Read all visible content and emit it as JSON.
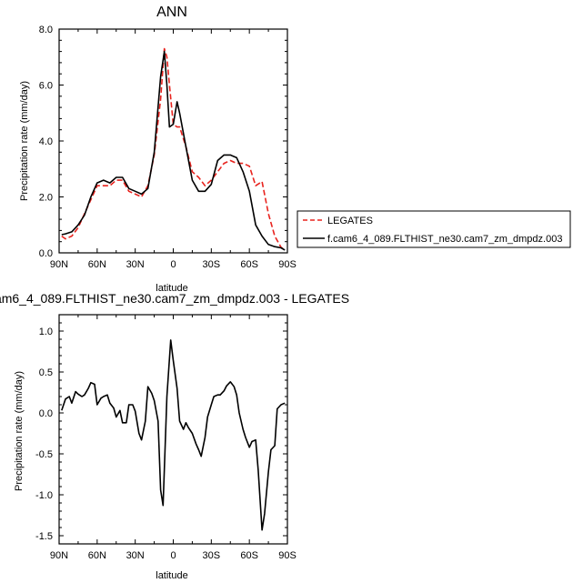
{
  "top_title": "ANN",
  "bottom_title": "am6_4_089.FLTHIST_ne30.cam7_zm_dmpdz.003 - LEGATES",
  "legend": {
    "entries": [
      {
        "label": "LEGATES",
        "color": "#e8231e",
        "dash": "dashed"
      },
      {
        "label": "f.cam6_4_089.FLTHIST_ne30.cam7_zm_dmpdz.003",
        "color": "#000000",
        "dash": "solid"
      }
    ]
  },
  "chart_data": [
    {
      "type": "line",
      "title": "ANN",
      "xlabel": "latitude",
      "ylabel": "Precipitation rate (mm/day)",
      "xlim": [
        90,
        -90
      ],
      "ylim": [
        0,
        8
      ],
      "xticks": [
        90,
        60,
        30,
        0,
        -30,
        -60,
        -90
      ],
      "xticklabels": [
        "90N",
        "60N",
        "30N",
        "0",
        "30S",
        "60S",
        "90S"
      ],
      "yticks": [
        0,
        2,
        4,
        6,
        8
      ],
      "yticklabels": [
        "0.0",
        "2.0",
        "4.0",
        "6.0",
        "8.0"
      ],
      "legend_position": "right",
      "series": [
        {
          "name": "LEGATES",
          "color": "#e8231e",
          "dash": "dashed",
          "x": [
            88,
            85,
            80,
            75,
            70,
            65,
            60,
            55,
            50,
            45,
            40,
            35,
            30,
            25,
            20,
            15,
            10,
            7,
            5,
            3,
            0,
            -3,
            -5,
            -10,
            -15,
            -20,
            -25,
            -30,
            -35,
            -40,
            -45,
            -50,
            -55,
            -60,
            -65,
            -70,
            -75,
            -80,
            -85,
            -88
          ],
          "y": [
            0.6,
            0.5,
            0.6,
            0.9,
            1.4,
            1.9,
            2.4,
            2.4,
            2.4,
            2.6,
            2.6,
            2.2,
            2.1,
            2.0,
            2.4,
            3.5,
            5.5,
            7.3,
            7.0,
            6.0,
            4.6,
            4.5,
            4.5,
            3.8,
            2.9,
            2.7,
            2.4,
            2.6,
            2.9,
            3.2,
            3.3,
            3.2,
            3.2,
            3.1,
            2.4,
            2.55,
            1.4,
            0.6,
            0.2,
            0.1
          ]
        },
        {
          "name": "f.cam6_4_089.FLTHIST_ne30.cam7_zm_dmpdz.003",
          "color": "#000000",
          "dash": "solid",
          "x": [
            88,
            85,
            80,
            75,
            70,
            65,
            60,
            55,
            50,
            45,
            40,
            35,
            30,
            25,
            20,
            15,
            10,
            7,
            5,
            3,
            0,
            -3,
            -5,
            -10,
            -15,
            -20,
            -25,
            -30,
            -35,
            -40,
            -45,
            -50,
            -55,
            -60,
            -65,
            -70,
            -75,
            -80,
            -85,
            -88
          ],
          "y": [
            0.65,
            0.68,
            0.75,
            1.0,
            1.35,
            2.0,
            2.5,
            2.6,
            2.5,
            2.7,
            2.7,
            2.3,
            2.2,
            2.1,
            2.3,
            3.6,
            6.3,
            7.2,
            6.0,
            4.5,
            4.6,
            5.4,
            5.0,
            3.8,
            2.6,
            2.2,
            2.2,
            2.45,
            3.3,
            3.5,
            3.5,
            3.4,
            2.9,
            2.2,
            1.0,
            0.6,
            0.3,
            0.22,
            0.18,
            0.1
          ]
        }
      ]
    },
    {
      "type": "line",
      "title": "am6_4_089.FLTHIST_ne30.cam7_zm_dmpdz.003 - LEGATES",
      "xlabel": "latitude",
      "ylabel": "Precipitation rate (mm/day)",
      "xlim": [
        90,
        -90
      ],
      "ylim": [
        -1.6,
        1.2
      ],
      "xticks": [
        90,
        60,
        30,
        0,
        -30,
        -60,
        -90
      ],
      "xticklabels": [
        "90N",
        "60N",
        "30N",
        "0",
        "30S",
        "60S",
        "90S"
      ],
      "yticks": [
        -1.5,
        -1.0,
        -0.5,
        0.0,
        0.5,
        1.0
      ],
      "yticklabels": [
        "-1.5",
        "-1.0",
        "-0.5",
        "0.0",
        "0.5",
        "1.0"
      ],
      "series": [
        {
          "color": "#000000",
          "dash": "solid",
          "x": [
            88,
            85,
            82,
            80,
            77,
            75,
            72,
            70,
            67,
            65,
            62,
            60,
            57,
            55,
            52,
            50,
            47,
            45,
            42,
            40,
            37,
            35,
            32,
            30,
            27,
            25,
            22,
            20,
            17,
            15,
            12,
            10,
            8,
            5,
            2,
            0,
            -3,
            -5,
            -8,
            -10,
            -12,
            -15,
            -18,
            -20,
            -22,
            -25,
            -27,
            -30,
            -32,
            -35,
            -37,
            -40,
            -42,
            -45,
            -48,
            -50,
            -52,
            -55,
            -57,
            -60,
            -62,
            -65,
            -67,
            -70,
            -72,
            -75,
            -77,
            -80,
            -82,
            -85,
            -88
          ],
          "y": [
            0.03,
            0.17,
            0.2,
            0.12,
            0.26,
            0.23,
            0.2,
            0.22,
            0.3,
            0.37,
            0.35,
            0.1,
            0.18,
            0.2,
            0.22,
            0.12,
            0.06,
            -0.05,
            0.03,
            -0.12,
            -0.12,
            0.1,
            0.1,
            0.02,
            -0.25,
            -0.33,
            -0.1,
            0.32,
            0.24,
            0.15,
            -0.1,
            -0.94,
            -1.13,
            0.2,
            0.89,
            0.64,
            0.3,
            -0.1,
            -0.2,
            -0.12,
            -0.18,
            -0.25,
            -0.38,
            -0.45,
            -0.53,
            -0.3,
            -0.05,
            0.1,
            0.2,
            0.22,
            0.22,
            0.27,
            0.33,
            0.38,
            0.32,
            0.22,
            0.0,
            -0.2,
            -0.3,
            -0.42,
            -0.35,
            -0.33,
            -0.7,
            -1.43,
            -1.23,
            -0.72,
            -0.45,
            -0.4,
            0.05,
            0.1,
            0.12
          ]
        }
      ]
    }
  ]
}
